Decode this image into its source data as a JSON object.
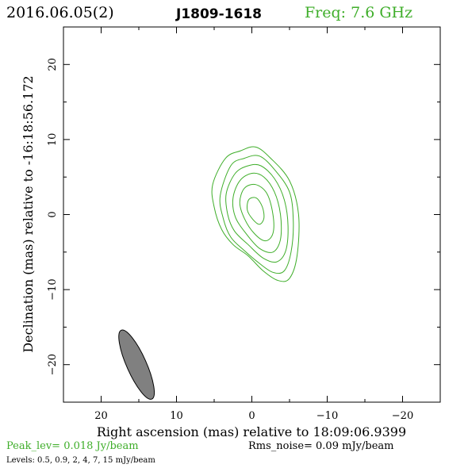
{
  "header": {
    "date": "2016.06.05(2)",
    "source": "J1809-1618",
    "freq": "Freq: 7.6 GHz"
  },
  "footer": {
    "peak": "Peak_lev=  0.018 Jy/beam",
    "rms": "Rms_noise= 0.09 mJy/beam",
    "levels": "Levels: 0.5, 0.9,   2,   4,   7,  15 mJy/beam"
  },
  "colors": {
    "contour": "#3fae2a",
    "header_green": "#3fae2a",
    "beam_fill": "#808080",
    "axis": "#000000"
  },
  "chart_data": {
    "type": "contour",
    "title": "J1809-1618",
    "xlabel": "Right ascension (mas) relative to 18:09:06.9399",
    "ylabel": "Declination (mas) relative to -16:18:56.172",
    "xlim": [
      25,
      -25
    ],
    "ylim": [
      -25,
      25
    ],
    "x_ticks": [
      20,
      10,
      0,
      -10,
      -20
    ],
    "x_tick_labels": [
      "20",
      "10",
      "0",
      "−10",
      "−20"
    ],
    "y_ticks": [
      20,
      10,
      0,
      -10,
      -20
    ],
    "y_tick_labels": [
      "20",
      "10",
      "0",
      "−10",
      "−20"
    ],
    "contour_levels_mJy": [
      0.5,
      0.9,
      2,
      4,
      7,
      15
    ],
    "contours": [
      [
        [
          3.5,
          7.5
        ],
        [
          1.5,
          8.5
        ],
        [
          -0.5,
          9
        ],
        [
          -2.5,
          7.5
        ],
        [
          -5.0,
          4.5
        ],
        [
          -6.2,
          0
        ],
        [
          -6.0,
          -5.5
        ],
        [
          -5.0,
          -8.5
        ],
        [
          -3.5,
          -8.8
        ],
        [
          -1.5,
          -7.5
        ],
        [
          0.5,
          -5.5
        ],
        [
          2.5,
          -4.0
        ],
        [
          4.0,
          -2.0
        ],
        [
          5.0,
          1.0
        ],
        [
          5.2,
          4.0
        ]
      ],
      [
        [
          2.8,
          6.5
        ],
        [
          1.0,
          7.5
        ],
        [
          -1.0,
          7.8
        ],
        [
          -3.0,
          6.0
        ],
        [
          -5.0,
          3.0
        ],
        [
          -5.5,
          -1.0
        ],
        [
          -5.2,
          -5.0
        ],
        [
          -4.3,
          -7.5
        ],
        [
          -2.8,
          -7.7
        ],
        [
          -1.0,
          -6.5
        ],
        [
          1.0,
          -4.8
        ],
        [
          2.8,
          -3.0
        ],
        [
          3.8,
          -0.5
        ],
        [
          4.2,
          2.5
        ]
      ],
      [
        [
          2.2,
          5.5
        ],
        [
          0.5,
          6.5
        ],
        [
          -1.2,
          6.5
        ],
        [
          -3.0,
          4.8
        ],
        [
          -4.3,
          2.0
        ],
        [
          -4.8,
          -1.5
        ],
        [
          -4.5,
          -4.8
        ],
        [
          -3.3,
          -6.3
        ],
        [
          -1.5,
          -5.8
        ],
        [
          0.5,
          -4.0
        ],
        [
          2.3,
          -2.2
        ],
        [
          3.2,
          0.0
        ],
        [
          3.4,
          2.8
        ]
      ],
      [
        [
          1.6,
          4.5
        ],
        [
          0.0,
          5.5
        ],
        [
          -1.6,
          5.0
        ],
        [
          -3.0,
          3.0
        ],
        [
          -3.8,
          0.0
        ],
        [
          -3.8,
          -3.3
        ],
        [
          -2.8,
          -5.0
        ],
        [
          -1.0,
          -4.5
        ],
        [
          0.8,
          -2.5
        ],
        [
          2.2,
          -0.3
        ],
        [
          2.5,
          2.2
        ]
      ],
      [
        [
          1.0,
          3.5
        ],
        [
          -0.5,
          4.0
        ],
        [
          -2.0,
          2.8
        ],
        [
          -2.8,
          0.0
        ],
        [
          -2.8,
          -2.5
        ],
        [
          -1.8,
          -3.5
        ],
        [
          -0.3,
          -2.5
        ],
        [
          1.0,
          -0.5
        ],
        [
          1.6,
          1.6
        ]
      ],
      [
        [
          0.4,
          2.0
        ],
        [
          -0.6,
          2.2
        ],
        [
          -1.4,
          1.0
        ],
        [
          -1.6,
          -0.5
        ],
        [
          -1.0,
          -1.3
        ],
        [
          -0.1,
          -0.6
        ],
        [
          0.6,
          0.6
        ]
      ]
    ],
    "beam": {
      "center": [
        15.3,
        -20.0
      ],
      "major_mas": 10.0,
      "minor_mas": 2.6,
      "pa_deg": -24
    }
  }
}
